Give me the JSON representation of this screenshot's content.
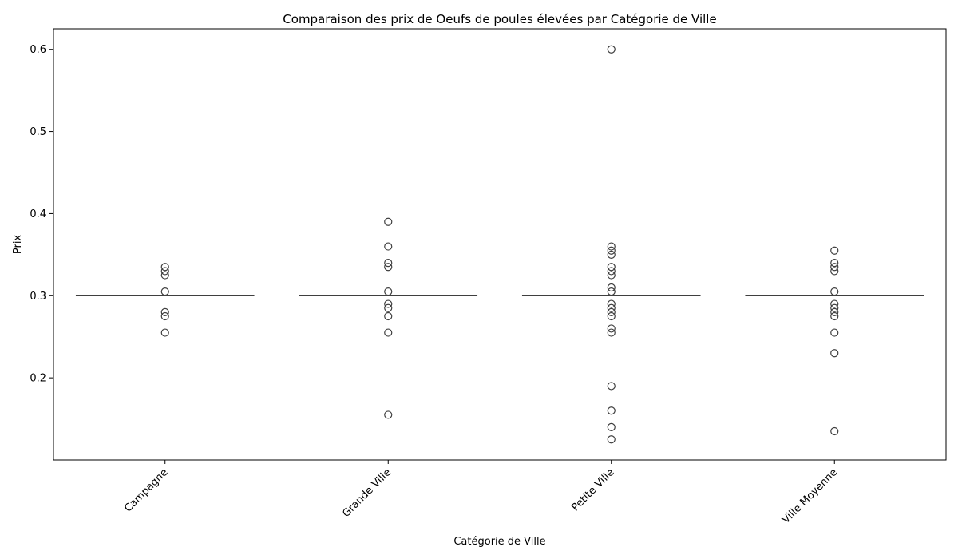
{
  "chart_data": {
    "type": "box",
    "title": "Comparaison des prix de Oeufs de poules élevées par Catégorie de Ville",
    "xlabel": "Catégorie de Ville",
    "ylabel": "Prix",
    "ylim": [
      0.1,
      0.625
    ],
    "yticks": [
      "0.2",
      "0.3",
      "0.4",
      "0.5",
      "0.6"
    ],
    "ytick_values": [
      0.2,
      0.3,
      0.4,
      0.5,
      0.6
    ],
    "grid": false,
    "categories": [
      "Campagne",
      "Grande Ville",
      "Petite Ville",
      "Ville Moyenne"
    ],
    "series": [
      {
        "category": "Campagne",
        "median": 0.3,
        "q1": 0.3,
        "q3": 0.3,
        "outliers": [
          0.335,
          0.33,
          0.325,
          0.305,
          0.28,
          0.275,
          0.255
        ]
      },
      {
        "category": "Grande Ville",
        "median": 0.3,
        "q1": 0.3,
        "q3": 0.3,
        "outliers": [
          0.39,
          0.36,
          0.34,
          0.335,
          0.305,
          0.29,
          0.285,
          0.275,
          0.255,
          0.155
        ]
      },
      {
        "category": "Petite Ville",
        "median": 0.3,
        "q1": 0.3,
        "q3": 0.3,
        "outliers": [
          0.6,
          0.36,
          0.355,
          0.35,
          0.335,
          0.33,
          0.325,
          0.31,
          0.305,
          0.29,
          0.285,
          0.28,
          0.275,
          0.26,
          0.255,
          0.19,
          0.16,
          0.14,
          0.125
        ]
      },
      {
        "category": "Ville Moyenne",
        "median": 0.3,
        "q1": 0.3,
        "q3": 0.3,
        "outliers": [
          0.355,
          0.34,
          0.335,
          0.33,
          0.305,
          0.29,
          0.285,
          0.28,
          0.275,
          0.255,
          0.23,
          0.135
        ]
      }
    ],
    "colors": {
      "box": "#3f3f3f",
      "axis": "#000000"
    }
  }
}
